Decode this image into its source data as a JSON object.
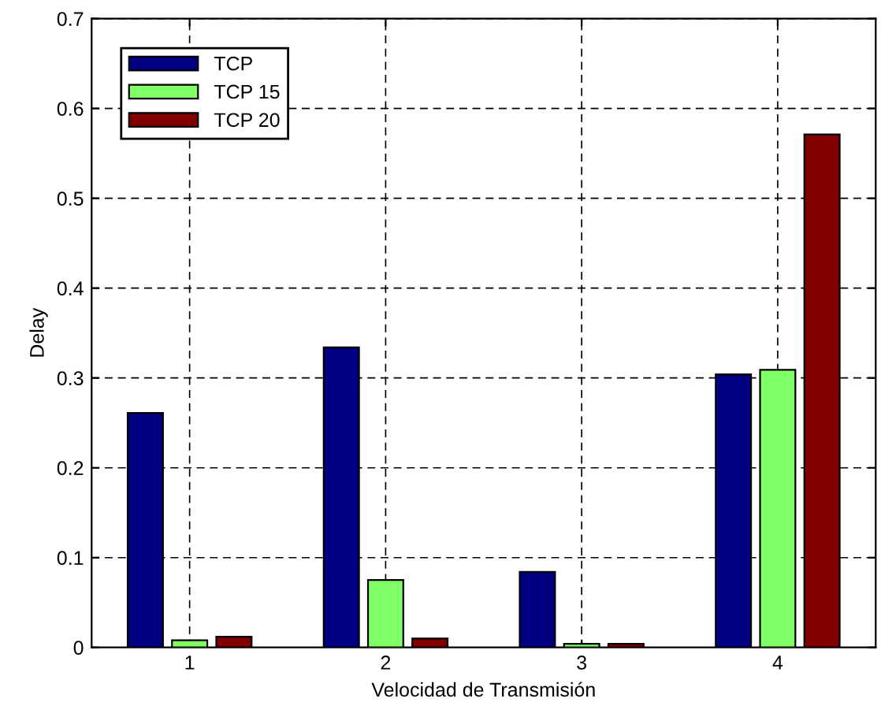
{
  "chart_data": {
    "type": "bar",
    "xlabel": "Velocidad de Transmisión",
    "ylabel": "Delay",
    "categories": [
      "1",
      "2",
      "3",
      "4"
    ],
    "series": [
      {
        "name": "TCP",
        "color": "#000080",
        "values": [
          0.261,
          0.334,
          0.084,
          0.304
        ]
      },
      {
        "name": "TCP 15",
        "color": "#80ff66",
        "values": [
          0.008,
          0.075,
          0.004,
          0.309
        ]
      },
      {
        "name": "TCP 20",
        "color": "#800000",
        "values": [
          0.012,
          0.01,
          0.004,
          0.571
        ]
      }
    ],
    "ylim": [
      0,
      0.7
    ],
    "yticks": [
      0,
      0.1,
      0.2,
      0.3,
      0.4,
      0.5,
      0.6,
      0.7
    ],
    "grid": true,
    "legend": "top left"
  }
}
